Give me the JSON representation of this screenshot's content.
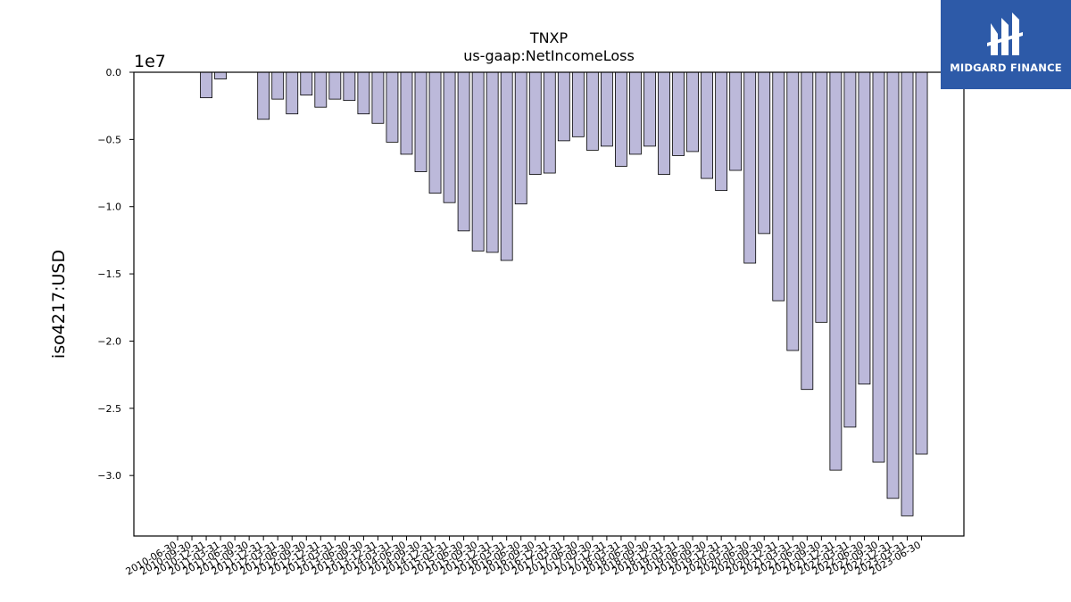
{
  "chart_data": {
    "type": "bar",
    "title": "TNXP",
    "subtitle": "us-gaap:NetIncomeLoss",
    "ylabel": "iso4217:USD",
    "xlabel": "",
    "scale_label": "1e7",
    "ylim": [
      -34.5,
      0
    ],
    "yticks": [
      0,
      -5,
      -10,
      -15,
      -20,
      -25,
      -30
    ],
    "ytick_labels": [
      "0.0",
      "−0.5",
      "−1.0",
      "−1.5",
      "−2.0",
      "−2.5",
      "−3.0"
    ],
    "grid": false,
    "bar_color": "#bcb9da",
    "edge_color": "#000000",
    "categories": [
      "2010-06-30",
      "2010-09-30",
      "2010-12-31",
      "2011-03-31",
      "2011-06-30",
      "2011-09-30",
      "2011-12-31",
      "2012-03-31",
      "2012-06-30",
      "2012-09-30",
      "2012-12-31",
      "2013-03-31",
      "2013-06-30",
      "2013-09-30",
      "2013-12-31",
      "2014-03-31",
      "2014-06-30",
      "2014-09-30",
      "2014-12-31",
      "2015-03-31",
      "2015-06-30",
      "2015-09-30",
      "2015-12-31",
      "2016-03-31",
      "2016-06-30",
      "2016-09-30",
      "2016-12-31",
      "2017-03-31",
      "2017-06-30",
      "2017-09-30",
      "2017-12-31",
      "2018-03-31",
      "2018-06-30",
      "2018-09-30",
      "2018-12-31",
      "2019-03-31",
      "2019-06-30",
      "2019-09-30",
      "2019-12-31",
      "2020-03-31",
      "2020-06-30",
      "2020-09-30",
      "2020-12-31",
      "2021-03-31",
      "2021-06-30",
      "2021-09-30",
      "2021-12-31",
      "2022-03-31",
      "2022-06-30",
      "2022-09-30",
      "2022-12-31",
      "2023-03-31",
      "2023-06-30"
    ],
    "values": [
      0,
      0,
      -1.9,
      -0.5,
      0,
      0,
      -3.5,
      -2.0,
      -3.1,
      -1.7,
      -2.6,
      -2.0,
      -2.1,
      -3.1,
      -3.8,
      -5.2,
      -6.1,
      -7.4,
      -9.0,
      -9.7,
      -11.8,
      -13.3,
      -13.4,
      -14.0,
      -9.8,
      -7.6,
      -7.5,
      -5.1,
      -4.8,
      -5.8,
      -5.5,
      -7.0,
      -6.1,
      -5.5,
      -7.6,
      -6.2,
      -5.9,
      -7.9,
      -8.8,
      -7.3,
      -14.2,
      -12.0,
      -17.0,
      -20.7,
      -23.6,
      -18.6,
      -29.6,
      -26.4,
      -23.2,
      -29.0,
      -31.7,
      -33.0,
      -28.4
    ]
  },
  "logo": {
    "text": "MIDGARD FINANCE",
    "bg_color": "#2d5aa8"
  }
}
